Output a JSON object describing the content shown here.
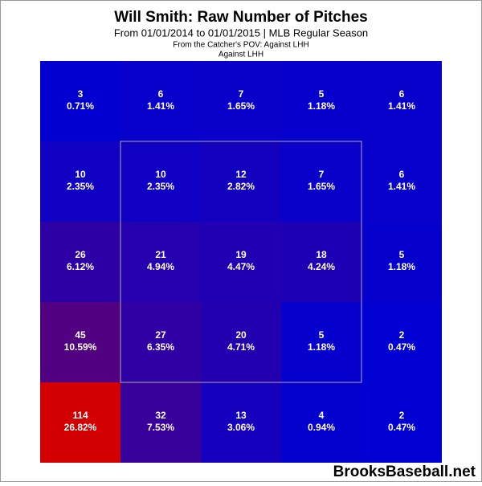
{
  "chart_data": {
    "type": "heatmap",
    "title": "Will Smith: Raw Number of Pitches",
    "subtitle": "From 01/01/2014 to 01/01/2015 | MLB Regular Season",
    "annotations": [
      "From the Catcher's POV:   Against LHH",
      "Against LHH"
    ],
    "watermark": "BrooksBaseball.net",
    "values": [
      [
        3,
        6,
        7,
        5,
        6
      ],
      [
        10,
        10,
        12,
        7,
        6
      ],
      [
        26,
        21,
        19,
        18,
        5
      ],
      [
        45,
        27,
        20,
        5,
        2
      ],
      [
        114,
        32,
        13,
        4,
        2
      ]
    ],
    "percents": [
      [
        0.71,
        1.41,
        1.65,
        1.18,
        1.41
      ],
      [
        2.35,
        2.35,
        2.82,
        1.65,
        1.41
      ],
      [
        6.12,
        4.94,
        4.47,
        4.24,
        1.18
      ],
      [
        10.59,
        6.35,
        4.71,
        1.18,
        0.47
      ],
      [
        26.82,
        7.53,
        3.06,
        0.94,
        0.47
      ]
    ],
    "percent_labels": [
      [
        "0.71%",
        "1.41%",
        "1.65%",
        "1.18%",
        "1.41%"
      ],
      [
        "2.35%",
        "2.35%",
        "2.82%",
        "1.65%",
        "1.41%"
      ],
      [
        "6.12%",
        "4.94%",
        "4.47%",
        "4.24%",
        "1.18%"
      ],
      [
        "10.59%",
        "6.35%",
        "4.71%",
        "1.18%",
        "0.47%"
      ],
      [
        "26.82%",
        "7.53%",
        "3.06%",
        "0.94%",
        "0.47%"
      ]
    ],
    "color_low": "#0000d2",
    "color_high": "#d20000",
    "clim": [
      2,
      114
    ]
  }
}
